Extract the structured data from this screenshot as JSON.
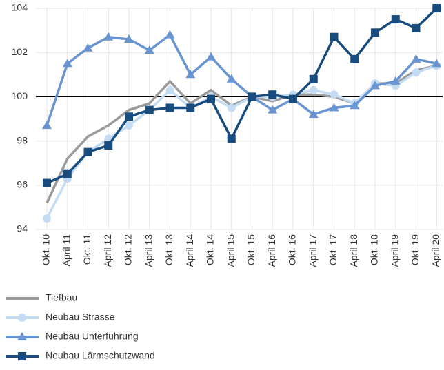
{
  "chart_data": {
    "type": "line",
    "categories": [
      "Okt. 10",
      "April 11",
      "Okt. 11",
      "April 12",
      "Okt. 12",
      "April 13",
      "Okt. 13",
      "April 14",
      "Okt. 14",
      "April 15",
      "Okt. 15",
      "April 16",
      "Okt. 16",
      "April 17",
      "Okt. 17",
      "April 18",
      "Okt. 18",
      "April 19",
      "Okt. 19",
      "April 20"
    ],
    "series": [
      {
        "name": "Tiefbau",
        "color": "#9a9a9a",
        "marker": "none",
        "values": [
          95.2,
          97.2,
          98.2,
          98.7,
          99.4,
          99.7,
          100.7,
          99.7,
          100.3,
          99.6,
          100.0,
          99.8,
          100.1,
          100.1,
          100.0,
          99.7,
          100.6,
          100.6,
          101.2,
          101.4
        ]
      },
      {
        "name": "Neubau Strasse",
        "color": "#c4dcf3",
        "marker": "circle",
        "values": [
          94.5,
          96.3,
          97.5,
          98.1,
          98.7,
          99.4,
          100.3,
          99.5,
          100.0,
          99.5,
          100.0,
          100.0,
          100.1,
          100.3,
          100.1,
          99.7,
          100.6,
          100.5,
          101.1,
          101.4
        ]
      },
      {
        "name": "Neubau Unterführung",
        "color": "#6994d2",
        "marker": "triangle",
        "values": [
          98.7,
          101.5,
          102.2,
          102.7,
          102.6,
          102.1,
          102.8,
          101.0,
          101.8,
          100.8,
          100.0,
          99.4,
          99.9,
          99.2,
          99.5,
          99.6,
          100.5,
          100.7,
          101.7,
          101.5
        ]
      },
      {
        "name": "Neubau Lärmschutzwand",
        "color": "#184c7e",
        "marker": "square",
        "values": [
          96.1,
          96.5,
          97.5,
          97.8,
          99.1,
          99.4,
          99.5,
          99.5,
          99.9,
          98.1,
          100.0,
          100.1,
          99.9,
          100.8,
          102.7,
          101.7,
          102.9,
          103.5,
          103.1,
          104.0
        ]
      }
    ],
    "ylim": [
      94,
      104
    ],
    "yticks": [
      94,
      96,
      98,
      100,
      102,
      104
    ],
    "grid": true,
    "reference_line": 100,
    "legend": "bottom"
  }
}
